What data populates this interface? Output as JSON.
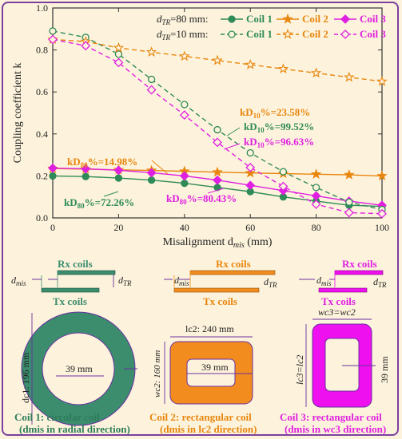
{
  "chart_data": {
    "type": "line",
    "ylabel": "Coupling coefficient k",
    "xlabel_main": "Misalignment d",
    "xlabel_sub": "mis",
    "xlabel_unit": " (mm)",
    "xlim": [
      0,
      100
    ],
    "ylim": [
      0,
      1.0
    ],
    "x_ticks": [
      "0",
      "20",
      "40",
      "60",
      "80",
      "100"
    ],
    "y_ticks": [
      "0.0",
      "0.2",
      "0.4",
      "0.6",
      "0.8",
      "1.0"
    ],
    "legend_row1": "dTR=80 mm:",
    "legend_row2": "dTR=10 mm:",
    "x": [
      0,
      10,
      20,
      30,
      40,
      50,
      60,
      70,
      80,
      90,
      100
    ],
    "series": [
      {
        "name": "Coil 1",
        "group": "dTR=80 mm",
        "color": "#2e8b57",
        "marker": "circle-filled",
        "dashed": false,
        "values": [
          0.2,
          0.197,
          0.19,
          0.18,
          0.165,
          0.145,
          0.125,
          0.1,
          0.08,
          0.06,
          0.055
        ]
      },
      {
        "name": "Coil 2",
        "group": "dTR=80 mm",
        "color": "#e8860f",
        "marker": "star-filled",
        "dashed": false,
        "values": [
          0.235,
          0.232,
          0.229,
          0.226,
          0.222,
          0.218,
          0.214,
          0.211,
          0.208,
          0.205,
          0.2
        ]
      },
      {
        "name": "Coil 3",
        "group": "dTR=80 mm",
        "color": "#e020e0",
        "marker": "diamond-filled",
        "dashed": false,
        "values": [
          0.237,
          0.234,
          0.227,
          0.215,
          0.2,
          0.18,
          0.155,
          0.13,
          0.105,
          0.08,
          0.06
        ]
      },
      {
        "name": "Coil 1",
        "group": "dTR=10 mm",
        "color": "#2e8b57",
        "marker": "circle-open",
        "dashed": true,
        "values": [
          0.89,
          0.86,
          0.78,
          0.66,
          0.54,
          0.42,
          0.31,
          0.22,
          0.145,
          0.075,
          0.04
        ]
      },
      {
        "name": "Coil 2",
        "group": "dTR=10 mm",
        "color": "#e8860f",
        "marker": "star-open",
        "dashed": true,
        "values": [
          0.85,
          0.84,
          0.81,
          0.79,
          0.77,
          0.75,
          0.73,
          0.71,
          0.69,
          0.67,
          0.65
        ]
      },
      {
        "name": "Coil 3",
        "group": "dTR=10 mm",
        "color": "#e020e0",
        "marker": "diamond-open",
        "dashed": true,
        "values": [
          0.85,
          0.82,
          0.74,
          0.61,
          0.49,
          0.36,
          0.24,
          0.15,
          0.065,
          0.025,
          0.02
        ]
      }
    ],
    "annotations": [
      {
        "text": "kD10%=23.58%",
        "color": "#e8860f"
      },
      {
        "text": "kD10%=99.52%",
        "color": "#2e8b57"
      },
      {
        "text": "kD10%=96.63%",
        "color": "#e020e0"
      },
      {
        "text": "kD80%=14.98%",
        "color": "#e8860f"
      },
      {
        "text": "kD80%=72.26%",
        "color": "#2e8b57"
      },
      {
        "text": "kD80%=80.43%",
        "color": "#e020e0"
      }
    ],
    "grid": false
  },
  "diagrams": {
    "coil1": {
      "rx": "Rx coils",
      "tx": "Tx coils",
      "dmis": "dmis",
      "dtr": "dTR",
      "dim_outer": "dc1: 196 mm",
      "dim_inner": "39 mm",
      "caption1": "Coil 1: circular coil",
      "caption2": "(dmis in radial direction)",
      "color": "#3c8c6e"
    },
    "coil2": {
      "rx": "Rx coils",
      "tx": "Tx coils",
      "dmis": "dmis",
      "dtr": "dTR",
      "dim_top": "lc2: 240 mm",
      "dim_left": "wc2: 160 mm",
      "dim_inner": "39 mm",
      "caption1": "Coil 2: rectangular coil",
      "caption2": "(dmis in lc2 direction)",
      "color": "#f28c1e"
    },
    "coil3": {
      "rx": "Rx coils",
      "tx": "Tx coils",
      "dmis": "dmis",
      "dtr": "dTR",
      "dim_top": "wc3=wc2",
      "dim_left": "lc3=lc2",
      "dim_inner": "39 mm",
      "caption1": "Coil 3: rectangular coil",
      "caption2": "(dmis in wc3 direction)",
      "color": "#ee10ee"
    }
  }
}
